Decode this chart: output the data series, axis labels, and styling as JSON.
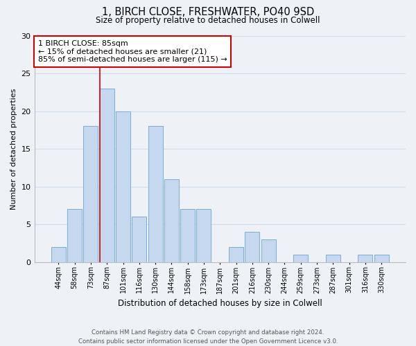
{
  "title": "1, BIRCH CLOSE, FRESHWATER, PO40 9SD",
  "subtitle": "Size of property relative to detached houses in Colwell",
  "xlabel": "Distribution of detached houses by size in Colwell",
  "ylabel": "Number of detached properties",
  "bar_labels": [
    "44sqm",
    "58sqm",
    "73sqm",
    "87sqm",
    "101sqm",
    "116sqm",
    "130sqm",
    "144sqm",
    "158sqm",
    "173sqm",
    "187sqm",
    "201sqm",
    "216sqm",
    "230sqm",
    "244sqm",
    "259sqm",
    "273sqm",
    "287sqm",
    "301sqm",
    "316sqm",
    "330sqm"
  ],
  "bar_values": [
    2,
    7,
    18,
    23,
    20,
    6,
    18,
    11,
    7,
    7,
    0,
    2,
    4,
    3,
    0,
    1,
    0,
    1,
    0,
    1,
    1
  ],
  "bar_color": "#c5d8f0",
  "bar_edge_color": "#7aaed4",
  "vline_color": "#cc0000",
  "annotation_text": "1 BIRCH CLOSE: 85sqm\n← 15% of detached houses are smaller (21)\n85% of semi-detached houses are larger (115) →",
  "annotation_box_color": "#ffffff",
  "annotation_box_edge": "#cc0000",
  "ylim": [
    0,
    30
  ],
  "yticks": [
    0,
    5,
    10,
    15,
    20,
    25,
    30
  ],
  "grid_color": "#d0dde8",
  "background_color": "#eef2f7",
  "footer_line1": "Contains HM Land Registry data © Crown copyright and database right 2024.",
  "footer_line2": "Contains public sector information licensed under the Open Government Licence v3.0."
}
